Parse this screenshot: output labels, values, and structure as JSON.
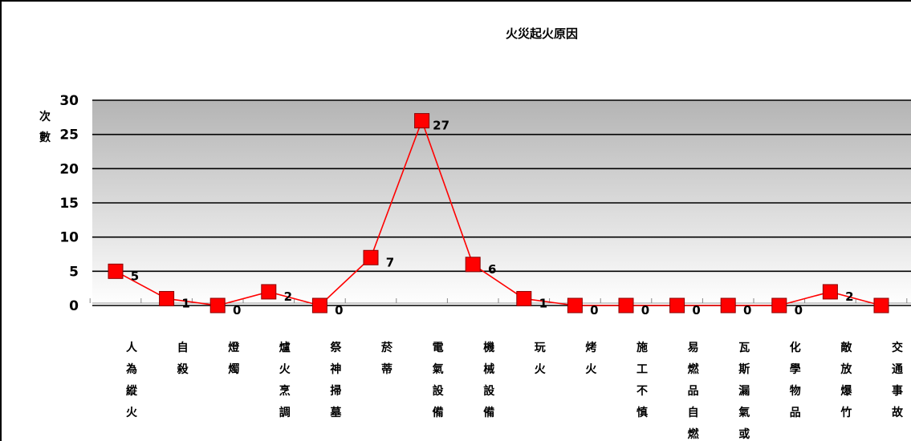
{
  "chart_data": {
    "type": "line",
    "title": "火災起火原因",
    "xlabel": "",
    "ylabel": "次數",
    "ylim": [
      0,
      30
    ],
    "yticks": [
      0,
      5,
      10,
      15,
      20,
      25,
      30
    ],
    "grid": true,
    "legend": "none",
    "line_color": "#ff0000",
    "marker_color": "#ff0000",
    "categories": [
      "人為縱火",
      "自殺",
      "燈燭",
      "爐火烹調",
      "祭神掃墓",
      "菸蒂",
      "電氣設備",
      "機械設備",
      "玩火",
      "烤火",
      "施工不慎",
      "易燃品自燃",
      "瓦斯漏氣或",
      "化學物品",
      "敵放爆竹",
      "交通事故"
    ],
    "series": [
      {
        "values": [
          5,
          1,
          0,
          2,
          0,
          7,
          27,
          6,
          1,
          0,
          0,
          0,
          0,
          0,
          2,
          0
        ]
      }
    ]
  }
}
